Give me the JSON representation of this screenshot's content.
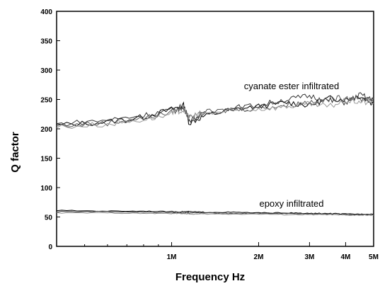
{
  "chart_data": {
    "type": "line",
    "title": "",
    "xlabel": "Frequency Hz",
    "ylabel": "Q factor",
    "x_scale": "log",
    "xlim": [
      400000,
      5000000
    ],
    "ylim": [
      0,
      400
    ],
    "x_ticks": [
      {
        "value": 1000000,
        "label": "1M"
      },
      {
        "value": 2000000,
        "label": "2M"
      },
      {
        "value": 3000000,
        "label": "3M"
      },
      {
        "value": 4000000,
        "label": "4M"
      },
      {
        "value": 5000000,
        "label": "5M"
      }
    ],
    "y_ticks": [
      0,
      50,
      100,
      150,
      200,
      250,
      300,
      350,
      400
    ],
    "grid": false,
    "legend": "none",
    "x": [
      400000,
      600000,
      800000,
      1000000,
      1100000,
      1150000,
      1300000,
      1600000,
      2000000,
      2500000,
      3000000,
      3500000,
      4000000,
      4500000,
      5000000
    ],
    "series": [
      {
        "color": "#000000",
        "values": [
          206,
          212,
          220,
          233,
          240,
          210,
          222,
          232,
          238,
          245,
          240,
          252,
          250,
          256,
          242
        ]
      },
      {
        "color": "#333333",
        "values": [
          208,
          215,
          223,
          232,
          238,
          215,
          225,
          235,
          240,
          250,
          256,
          248,
          245,
          258,
          248
        ]
      },
      {
        "color": "#555555",
        "values": [
          205,
          210,
          218,
          228,
          236,
          218,
          228,
          232,
          236,
          240,
          246,
          250,
          254,
          250,
          252
        ]
      },
      {
        "color": "#999999",
        "values": [
          203,
          208,
          216,
          225,
          232,
          220,
          226,
          230,
          234,
          238,
          242,
          238,
          248,
          246,
          244
        ]
      },
      {
        "color": "#000000",
        "values": [
          61,
          60,
          60,
          59,
          59,
          59,
          58,
          58,
          57,
          57,
          56,
          56,
          55,
          55,
          55
        ]
      },
      {
        "color": "#444444",
        "values": [
          59,
          59,
          58,
          58,
          57,
          57,
          57,
          56,
          56,
          56,
          55,
          55,
          54,
          54,
          54
        ]
      },
      {
        "color": "#888888",
        "values": [
          57,
          57,
          56,
          56,
          56,
          55,
          55,
          55,
          55,
          54,
          54,
          54,
          53,
          53,
          53
        ]
      }
    ],
    "annotations": [
      {
        "text": "cyanate ester infiltrated",
        "x": 2600000,
        "y": 272
      },
      {
        "text": "epoxy infiltrated",
        "x": 2600000,
        "y": 72
      }
    ]
  }
}
